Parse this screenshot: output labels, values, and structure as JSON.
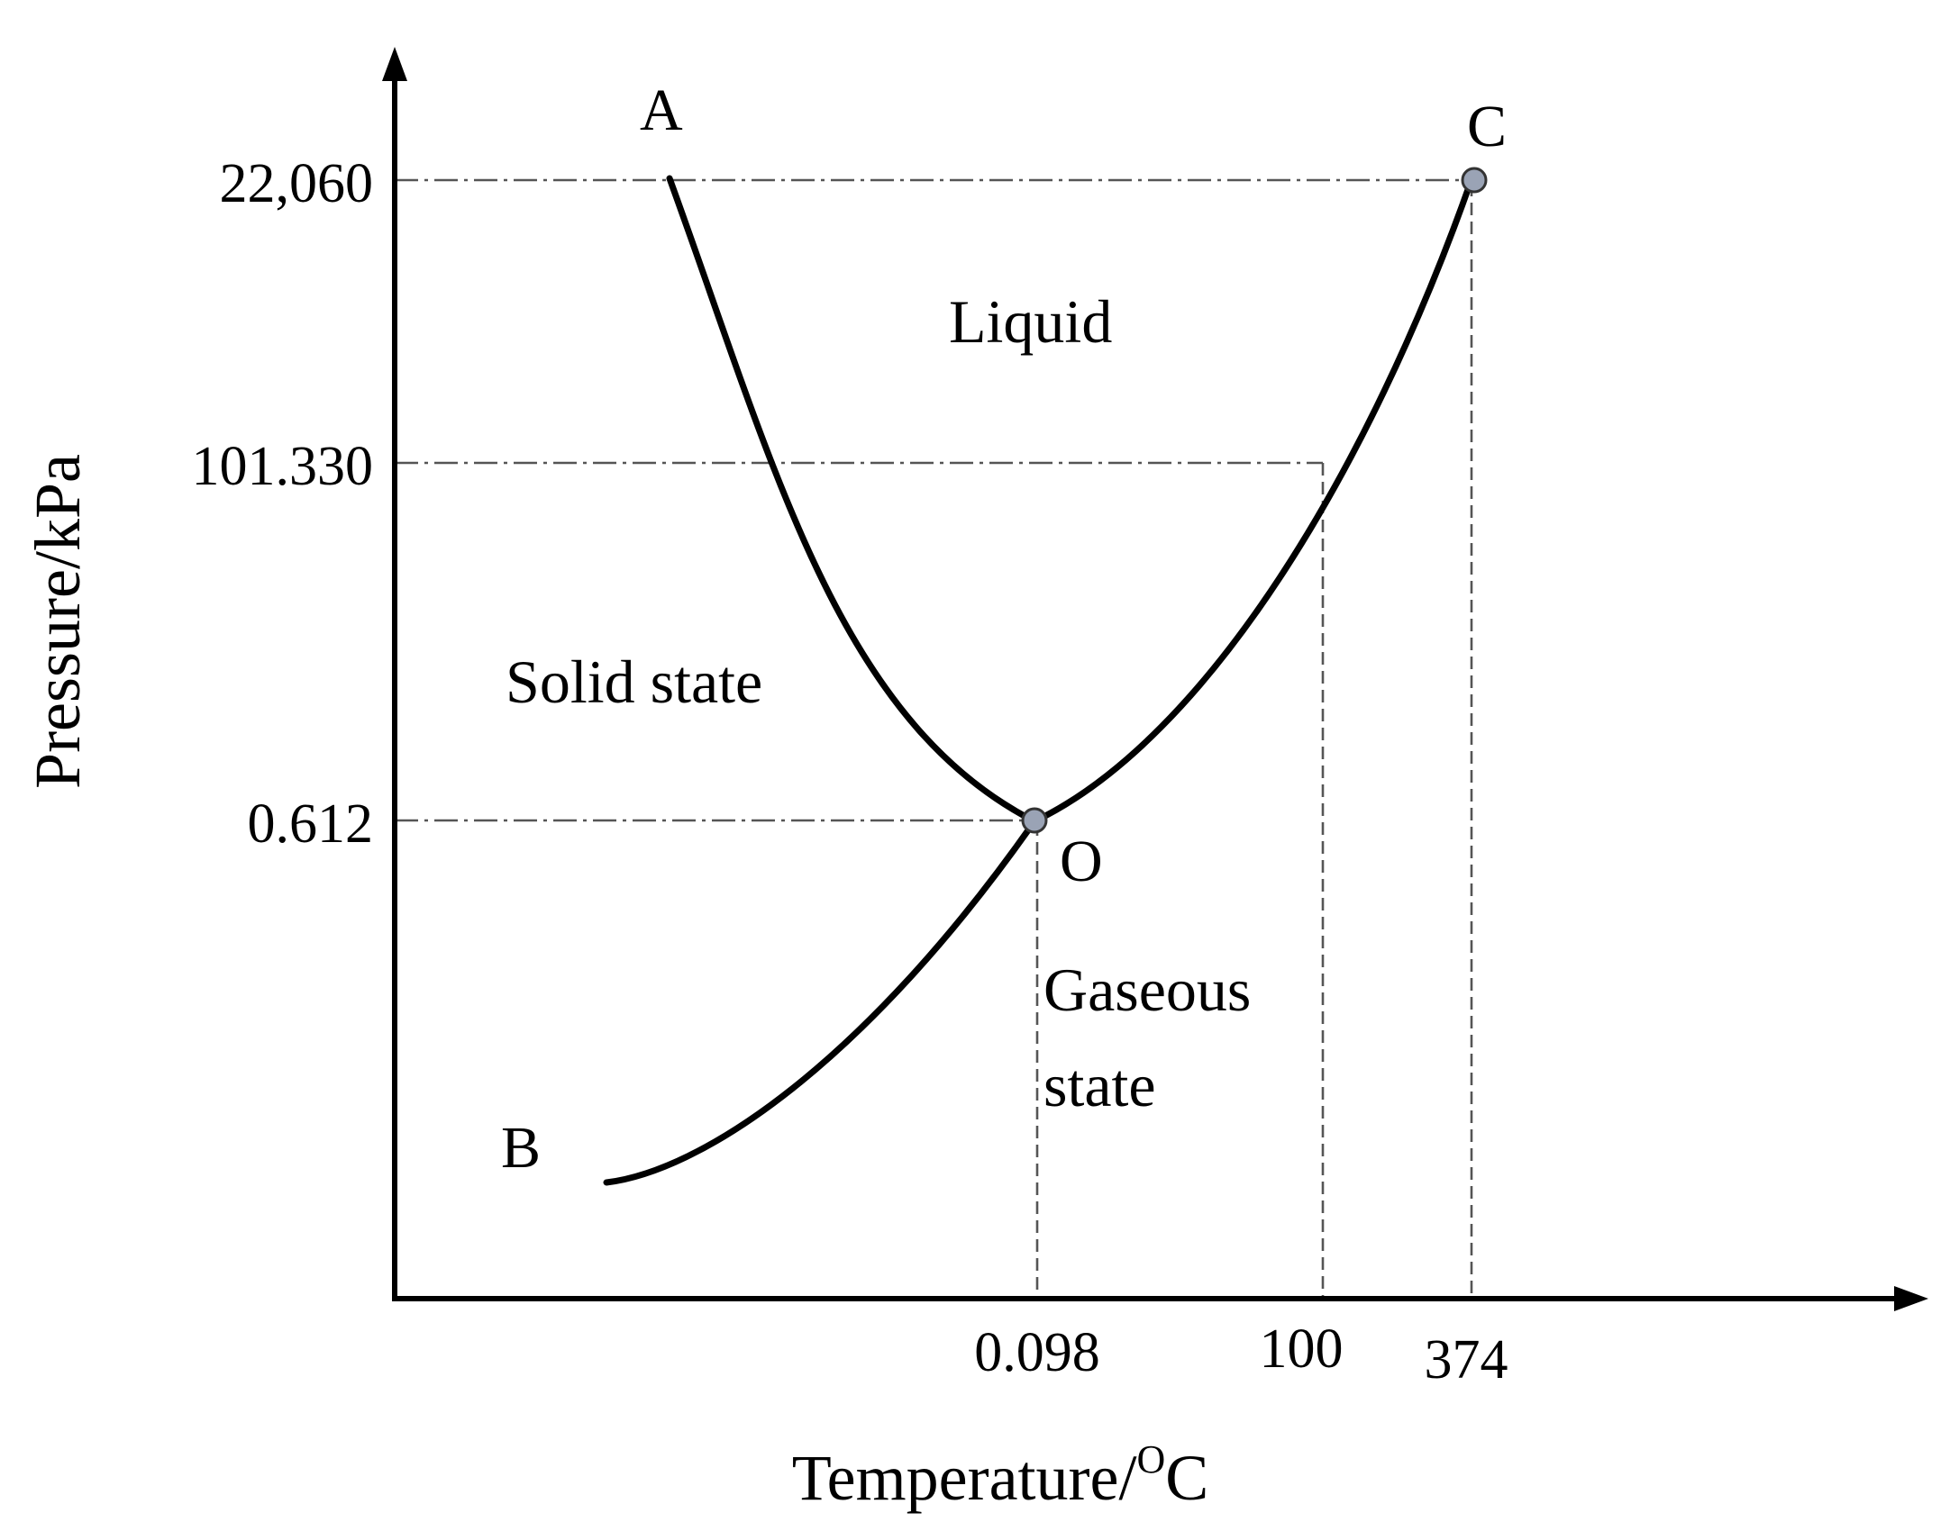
{
  "diagram": {
    "axes": {
      "x_title": "Temperature/",
      "x_title_unit_sup": "O",
      "x_title_unit": "C",
      "y_title": "Pressure/kPa"
    },
    "y_ticks": [
      "22,060",
      "101.330",
      "0.612"
    ],
    "x_ticks": [
      "0.098",
      "100",
      "374"
    ],
    "points": {
      "A": "A",
      "B": "B",
      "C": "C",
      "O": "O"
    },
    "regions": {
      "liquid": "Liquid",
      "solid": "Solid state",
      "gaseous_line1": "Gaseous",
      "gaseous_line2": "state"
    },
    "colors": {
      "curve": "#000000",
      "reference_lines": "#555555",
      "marker_fill": "#9aa3b5",
      "marker_stroke": "#333333"
    }
  }
}
